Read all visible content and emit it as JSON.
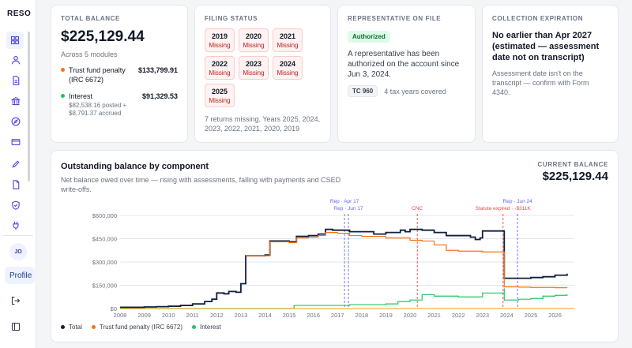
{
  "app": {
    "brand": "RESO"
  },
  "sidebar": {
    "items": [
      {
        "icon": "dashboard-icon",
        "active": true
      },
      {
        "icon": "user-icon"
      },
      {
        "icon": "document-icon"
      },
      {
        "icon": "bank-icon"
      },
      {
        "icon": "compass-icon"
      },
      {
        "icon": "card-icon"
      },
      {
        "icon": "pen-icon"
      },
      {
        "icon": "file-icon"
      },
      {
        "icon": "shield-icon"
      },
      {
        "icon": "plug-icon"
      }
    ],
    "avatar_initials": "JO",
    "profile_label": "Profile",
    "logout_icon": "logout-icon",
    "collapse_icon": "sidebar-collapse-icon"
  },
  "balance": {
    "title": "TOTAL BALANCE",
    "amount": "$225,129.44",
    "subtitle": "Across 5 modules",
    "components": [
      {
        "name": "Trust fund penalty (IRC 6672)",
        "value": "$133,799.91",
        "color": "#f97316",
        "detail": ""
      },
      {
        "name": "Interest",
        "value": "$91,329.53",
        "color": "#22c55e",
        "detail": "$82,538.16 posted + $8,791.37 accrued"
      }
    ]
  },
  "filing": {
    "title": "FILING STATUS",
    "years": [
      {
        "year": "2019",
        "status": "Missing"
      },
      {
        "year": "2020",
        "status": "Missing"
      },
      {
        "year": "2021",
        "status": "Missing"
      },
      {
        "year": "2022",
        "status": "Missing"
      },
      {
        "year": "2023",
        "status": "Missing"
      },
      {
        "year": "2024",
        "status": "Missing"
      },
      {
        "year": "2025",
        "status": "Missing"
      }
    ],
    "note": "7 returns missing. Years 2025, 2024, 2023, 2022, 2021, 2020, 2019"
  },
  "rep": {
    "title": "REPRESENTATIVE ON FILE",
    "badge": "Authorized",
    "text": "A representative has been authorized on the account since Jun 3, 2024.",
    "tc_badge": "TC 960",
    "tc_note": "4 tax years covered"
  },
  "csed": {
    "title": "COLLECTION EXPIRATION",
    "headline": "No earlier than Apr 2027 (estimated — assessment date not on transcript)",
    "note": "Assessment date isn't on the transcript — confirm with Form 4340."
  },
  "chart": {
    "title": "Outstanding balance by component",
    "subtitle": "Net balance owed over time — rising with assessments, falling with payments and CSED write-offs.",
    "current_label": "CURRENT BALANCE",
    "current_value": "$225,129.44",
    "legend": [
      {
        "name": "Total",
        "color": "#0f1e3d"
      },
      {
        "name": "Trust fund penalty (IRC 6672)",
        "color": "#f97316"
      },
      {
        "name": "Interest",
        "color": "#22c55e"
      }
    ]
  },
  "chart_data": {
    "type": "line",
    "xlabel": "",
    "ylabel": "",
    "xlim": [
      2008,
      2026.8
    ],
    "ylim": [
      0,
      600000
    ],
    "y_ticks": [
      0,
      150000,
      300000,
      450000,
      600000
    ],
    "y_tick_labels": [
      "$0",
      "$150,000",
      "$300,000",
      "$450,000",
      "$600,000"
    ],
    "x_ticks": [
      2008,
      2009,
      2010,
      2011,
      2012,
      2013,
      2014,
      2015,
      2016,
      2017,
      2018,
      2019,
      2020,
      2021,
      2022,
      2023,
      2024,
      2025,
      2026
    ],
    "grid": true,
    "series": [
      {
        "name": "Total",
        "color": "#0f1e3d",
        "points": [
          [
            2008.0,
            8000
          ],
          [
            2009.0,
            10000
          ],
          [
            2009.5,
            12000
          ],
          [
            2010.0,
            15000
          ],
          [
            2010.5,
            20000
          ],
          [
            2011.0,
            30000
          ],
          [
            2011.5,
            45000
          ],
          [
            2011.8,
            60000
          ],
          [
            2012.0,
            100000
          ],
          [
            2012.3,
            95000
          ],
          [
            2012.5,
            110000
          ],
          [
            2012.8,
            105000
          ],
          [
            2013.0,
            160000
          ],
          [
            2013.2,
            160000
          ],
          [
            2013.2,
            340000
          ],
          [
            2014.0,
            345000
          ],
          [
            2014.2,
            435000
          ],
          [
            2015.0,
            430000
          ],
          [
            2015.3,
            465000
          ],
          [
            2015.8,
            470000
          ],
          [
            2016.2,
            480000
          ],
          [
            2016.5,
            510000
          ],
          [
            2016.8,
            505000
          ],
          [
            2017.2,
            505000
          ],
          [
            2017.5,
            495000
          ],
          [
            2018.0,
            495000
          ],
          [
            2018.5,
            480000
          ],
          [
            2019.0,
            490000
          ],
          [
            2019.6,
            505000
          ],
          [
            2019.8,
            495000
          ],
          [
            2020.0,
            510000
          ],
          [
            2020.5,
            505000
          ],
          [
            2021.0,
            490000
          ],
          [
            2021.5,
            470000
          ],
          [
            2022.0,
            470000
          ],
          [
            2022.5,
            460000
          ],
          [
            2022.7,
            445000
          ],
          [
            2022.9,
            455000
          ],
          [
            2023.0,
            500000
          ],
          [
            2023.9,
            495000
          ],
          [
            2023.9,
            195000
          ],
          [
            2024.5,
            195000
          ],
          [
            2025.0,
            200000
          ],
          [
            2025.5,
            205000
          ],
          [
            2026.0,
            215000
          ],
          [
            2026.5,
            225129
          ]
        ]
      },
      {
        "name": "Trust fund penalty (IRC 6672)",
        "color": "#f97316",
        "points": [
          [
            2013.2,
            340000
          ],
          [
            2014.0,
            340000
          ],
          [
            2014.2,
            430000
          ],
          [
            2015.0,
            425000
          ],
          [
            2015.3,
            455000
          ],
          [
            2015.8,
            460000
          ],
          [
            2016.2,
            470000
          ],
          [
            2016.5,
            490000
          ],
          [
            2017.0,
            485000
          ],
          [
            2017.5,
            470000
          ],
          [
            2018.0,
            465000
          ],
          [
            2019.0,
            455000
          ],
          [
            2020.0,
            440000
          ],
          [
            2020.5,
            435000
          ],
          [
            2021.0,
            410000
          ],
          [
            2021.5,
            375000
          ],
          [
            2022.0,
            370000
          ],
          [
            2023.0,
            365000
          ],
          [
            2023.9,
            360000
          ],
          [
            2023.9,
            140000
          ],
          [
            2024.5,
            138000
          ],
          [
            2025.0,
            136000
          ],
          [
            2026.0,
            134000
          ],
          [
            2026.5,
            133800
          ]
        ]
      },
      {
        "name": "Interest",
        "color": "#22c55e",
        "points": [
          [
            2008.0,
            0
          ],
          [
            2015.0,
            0
          ],
          [
            2015.2,
            20000
          ],
          [
            2016.0,
            20000
          ],
          [
            2017.0,
            20000
          ],
          [
            2017.5,
            25000
          ],
          [
            2018.0,
            25000
          ],
          [
            2019.0,
            30000
          ],
          [
            2019.5,
            45000
          ],
          [
            2020.0,
            55000
          ],
          [
            2020.5,
            90000
          ],
          [
            2021.0,
            80000
          ],
          [
            2022.0,
            75000
          ],
          [
            2023.0,
            100000
          ],
          [
            2023.9,
            130000
          ],
          [
            2023.9,
            55000
          ],
          [
            2024.5,
            60000
          ],
          [
            2025.0,
            65000
          ],
          [
            2025.5,
            80000
          ],
          [
            2026.0,
            85000
          ],
          [
            2026.5,
            91330
          ]
        ]
      }
    ],
    "annotations": [
      {
        "label": "Rep · Apr 17",
        "x": 2017.29,
        "color": "#6366f1"
      },
      {
        "label": "Rep · Jun 17",
        "x": 2017.45,
        "color": "#6366f1"
      },
      {
        "label": "CNC",
        "x": 2020.3,
        "color": "#ef4444"
      },
      {
        "label": "Statute expired · -$311K",
        "x": 2023.85,
        "color": "#ef4444"
      },
      {
        "label": "Rep · Jun 24",
        "x": 2024.45,
        "color": "#6366f1"
      }
    ]
  }
}
